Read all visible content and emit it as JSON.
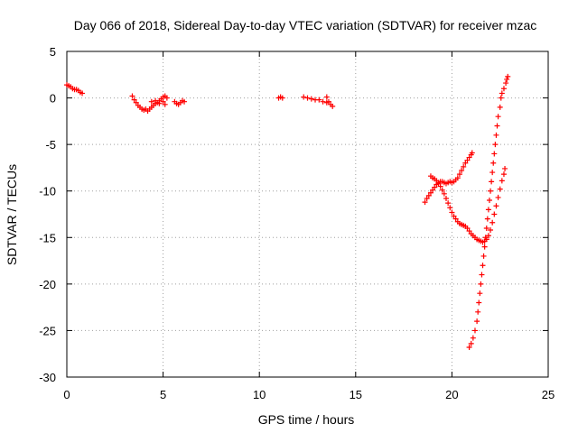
{
  "chart_data": {
    "type": "scatter",
    "title": "Day 066 of 2018, Sidereal Day-to-day VTEC variation (SDTVAR) for receiver mzac",
    "xlabel": "GPS time / hours",
    "ylabel": "SDTVAR / TECUs",
    "xlim": [
      0,
      25
    ],
    "ylim": [
      -30,
      5
    ],
    "xticks": [
      0,
      5,
      10,
      15,
      20,
      25
    ],
    "yticks": [
      -30,
      -25,
      -20,
      -15,
      -10,
      -5,
      0,
      5
    ],
    "grid": true,
    "marker": "plus",
    "series": [
      {
        "color": "#ff0000",
        "segments": [
          [
            [
              0.0,
              1.4
            ],
            [
              0.1,
              1.3
            ],
            [
              0.2,
              1.2
            ],
            [
              0.3,
              1.0
            ],
            [
              0.4,
              0.9
            ],
            [
              0.5,
              0.9
            ],
            [
              0.6,
              0.8
            ],
            [
              0.7,
              0.6
            ],
            [
              0.8,
              0.5
            ]
          ],
          [
            [
              3.4,
              0.2
            ],
            [
              3.5,
              -0.2
            ],
            [
              3.6,
              -0.5
            ],
            [
              3.7,
              -0.8
            ],
            [
              3.8,
              -1.0
            ],
            [
              3.9,
              -1.2
            ],
            [
              4.0,
              -1.3
            ],
            [
              4.1,
              -1.2
            ],
            [
              4.2,
              -1.4
            ],
            [
              4.3,
              -1.2
            ],
            [
              4.4,
              -1.0
            ],
            [
              4.5,
              -0.8
            ],
            [
              4.6,
              -0.6
            ],
            [
              4.7,
              -0.5
            ],
            [
              4.8,
              -0.3
            ],
            [
              4.9,
              -0.1
            ],
            [
              5.0,
              0.1
            ],
            [
              5.1,
              0.2
            ],
            [
              5.2,
              0.0
            ],
            [
              4.4,
              -0.4
            ],
            [
              4.6,
              -0.3
            ],
            [
              4.8,
              -0.6
            ],
            [
              5.0,
              -0.4
            ],
            [
              5.1,
              -0.7
            ]
          ],
          [
            [
              5.6,
              -0.4
            ],
            [
              5.7,
              -0.6
            ],
            [
              5.8,
              -0.7
            ],
            [
              5.9,
              -0.5
            ],
            [
              6.0,
              -0.3
            ],
            [
              6.1,
              -0.4
            ]
          ],
          [
            [
              11.0,
              0.0
            ],
            [
              11.1,
              0.1
            ],
            [
              11.2,
              0.0
            ]
          ],
          [
            [
              12.3,
              0.1
            ],
            [
              12.5,
              0.0
            ],
            [
              12.7,
              -0.1
            ],
            [
              12.9,
              -0.2
            ],
            [
              13.1,
              -0.2
            ],
            [
              13.3,
              -0.4
            ],
            [
              13.5,
              -0.5
            ],
            [
              13.6,
              -0.4
            ],
            [
              13.7,
              -0.7
            ],
            [
              13.8,
              -0.9
            ],
            [
              13.5,
              0.1
            ]
          ],
          [
            [
              18.6,
              -11.2
            ],
            [
              18.7,
              -10.8
            ],
            [
              18.8,
              -10.5
            ],
            [
              18.9,
              -10.2
            ],
            [
              19.0,
              -9.9
            ],
            [
              19.1,
              -9.6
            ],
            [
              19.2,
              -9.3
            ],
            [
              19.3,
              -9.1
            ],
            [
              19.4,
              -9.0
            ],
            [
              19.5,
              -9.0
            ],
            [
              19.6,
              -9.1
            ],
            [
              19.7,
              -9.2
            ],
            [
              19.8,
              -9.1
            ],
            [
              19.9,
              -9.0
            ],
            [
              20.0,
              -9.1
            ],
            [
              20.1,
              -9.0
            ],
            [
              20.2,
              -8.8
            ],
            [
              20.3,
              -8.6
            ],
            [
              20.4,
              -8.2
            ],
            [
              20.5,
              -7.8
            ],
            [
              20.6,
              -7.4
            ],
            [
              20.7,
              -7.0
            ],
            [
              20.8,
              -6.7
            ],
            [
              20.9,
              -6.4
            ],
            [
              21.0,
              -6.1
            ],
            [
              21.05,
              -5.9
            ]
          ],
          [
            [
              18.9,
              -8.4
            ],
            [
              19.0,
              -8.6
            ],
            [
              19.1,
              -8.7
            ],
            [
              19.2,
              -8.9
            ],
            [
              19.3,
              -9.2
            ],
            [
              19.4,
              -9.5
            ],
            [
              19.5,
              -9.9
            ],
            [
              19.6,
              -10.3
            ],
            [
              19.7,
              -10.8
            ],
            [
              19.8,
              -11.3
            ],
            [
              19.9,
              -11.8
            ],
            [
              20.0,
              -12.3
            ],
            [
              20.1,
              -12.7
            ],
            [
              20.2,
              -13.0
            ],
            [
              20.3,
              -13.3
            ],
            [
              20.4,
              -13.5
            ],
            [
              20.5,
              -13.6
            ],
            [
              20.6,
              -13.7
            ],
            [
              20.7,
              -13.8
            ],
            [
              20.8,
              -14.0
            ],
            [
              20.9,
              -14.3
            ],
            [
              21.0,
              -14.6
            ],
            [
              21.1,
              -14.8
            ],
            [
              21.2,
              -15.0
            ],
            [
              21.3,
              -15.2
            ],
            [
              21.4,
              -15.3
            ],
            [
              21.5,
              -15.4
            ],
            [
              21.6,
              -15.5
            ],
            [
              21.7,
              -15.4
            ],
            [
              21.8,
              -15.2
            ],
            [
              21.9,
              -14.8
            ],
            [
              22.0,
              -14.2
            ],
            [
              22.1,
              -13.4
            ],
            [
              22.2,
              -12.5
            ],
            [
              22.3,
              -11.6
            ],
            [
              22.4,
              -10.7
            ],
            [
              22.5,
              -9.8
            ],
            [
              22.6,
              -8.9
            ],
            [
              22.7,
              -8.2
            ],
            [
              22.75,
              -7.6
            ]
          ],
          [
            [
              20.9,
              -26.8
            ],
            [
              21.0,
              -26.4
            ],
            [
              21.1,
              -25.8
            ],
            [
              21.2,
              -25.0
            ],
            [
              21.3,
              -24.0
            ],
            [
              21.35,
              -23.0
            ],
            [
              21.4,
              -22.0
            ],
            [
              21.45,
              -21.0
            ],
            [
              21.5,
              -20.0
            ],
            [
              21.55,
              -19.0
            ],
            [
              21.6,
              -18.0
            ],
            [
              21.65,
              -17.0
            ],
            [
              21.7,
              -16.0
            ],
            [
              21.75,
              -15.0
            ],
            [
              21.8,
              -14.0
            ],
            [
              21.85,
              -13.0
            ],
            [
              21.9,
              -12.0
            ],
            [
              21.95,
              -11.0
            ],
            [
              22.0,
              -10.0
            ],
            [
              22.05,
              -9.0
            ],
            [
              22.1,
              -8.0
            ],
            [
              22.15,
              -7.0
            ],
            [
              22.2,
              -6.0
            ],
            [
              22.25,
              -5.0
            ],
            [
              22.3,
              -4.0
            ],
            [
              22.35,
              -3.0
            ],
            [
              22.4,
              -2.0
            ],
            [
              22.5,
              -1.0
            ],
            [
              22.55,
              0.0
            ],
            [
              22.6,
              0.5
            ],
            [
              22.7,
              1.0
            ],
            [
              22.8,
              1.6
            ],
            [
              22.85,
              2.0
            ],
            [
              22.9,
              2.3
            ]
          ]
        ]
      }
    ]
  }
}
